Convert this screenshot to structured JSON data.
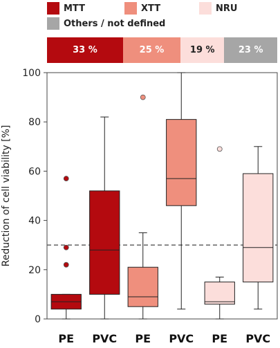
{
  "legend": [
    {
      "label": "MTT",
      "color": "#b40a0f"
    },
    {
      "label": "XTT",
      "color": "#ef8f7d"
    },
    {
      "label": "NRU",
      "color": "#fcdedb"
    },
    {
      "label": "Others / not defined",
      "color": "#a6a6a6"
    }
  ],
  "percent_bar": [
    {
      "label": "33 %",
      "fraction": 0.33,
      "color": "#b40a0f",
      "text_color": "#ffffff"
    },
    {
      "label": "25 %",
      "fraction": 0.25,
      "color": "#ef8f7d",
      "text_color": "#ffffff"
    },
    {
      "label": "19 %",
      "fraction": 0.19,
      "color": "#fcdedb",
      "text_color": "#222222"
    },
    {
      "label": "23 %",
      "fraction": 0.23,
      "color": "#a6a6a6",
      "text_color": "#ffffff"
    }
  ],
  "chart_data": {
    "type": "boxplot",
    "ylabel": "Reduction of cell viability  [%]",
    "ylim": [
      0,
      100
    ],
    "yticks": [
      "0",
      "20",
      "40",
      "60",
      "80",
      "100"
    ],
    "reference_line": 30,
    "grid": false,
    "categories": [
      "PE",
      "PVC",
      "PE",
      "PVC",
      "PE",
      "PVC"
    ],
    "boxes": [
      {
        "group": "MTT",
        "category": "PE",
        "color": "#b40a0f",
        "min": 0,
        "q1": 4,
        "median": 7,
        "q3": 10,
        "max": 10,
        "outliers": [
          22,
          29,
          57
        ]
      },
      {
        "group": "MTT",
        "category": "PVC",
        "color": "#b40a0f",
        "min": 0,
        "q1": 10,
        "median": 28,
        "q3": 52,
        "max": 82,
        "outliers": []
      },
      {
        "group": "XTT",
        "category": "PE",
        "color": "#ef8f7d",
        "min": 0,
        "q1": 5,
        "median": 9,
        "q3": 21,
        "max": 35,
        "outliers": [
          90
        ]
      },
      {
        "group": "XTT",
        "category": "PVC",
        "color": "#ef8f7d",
        "min": 4,
        "q1": 46,
        "median": 57,
        "q3": 81,
        "max": 100,
        "outliers": []
      },
      {
        "group": "NRU",
        "category": "PE",
        "color": "#fcdedb",
        "min": 0,
        "q1": 6,
        "median": 7,
        "q3": 15,
        "max": 17,
        "outliers": [
          69
        ]
      },
      {
        "group": "NRU",
        "category": "PVC",
        "color": "#fcdedb",
        "min": 4,
        "q1": 15,
        "median": 29,
        "q3": 59,
        "max": 70,
        "outliers": []
      }
    ]
  }
}
